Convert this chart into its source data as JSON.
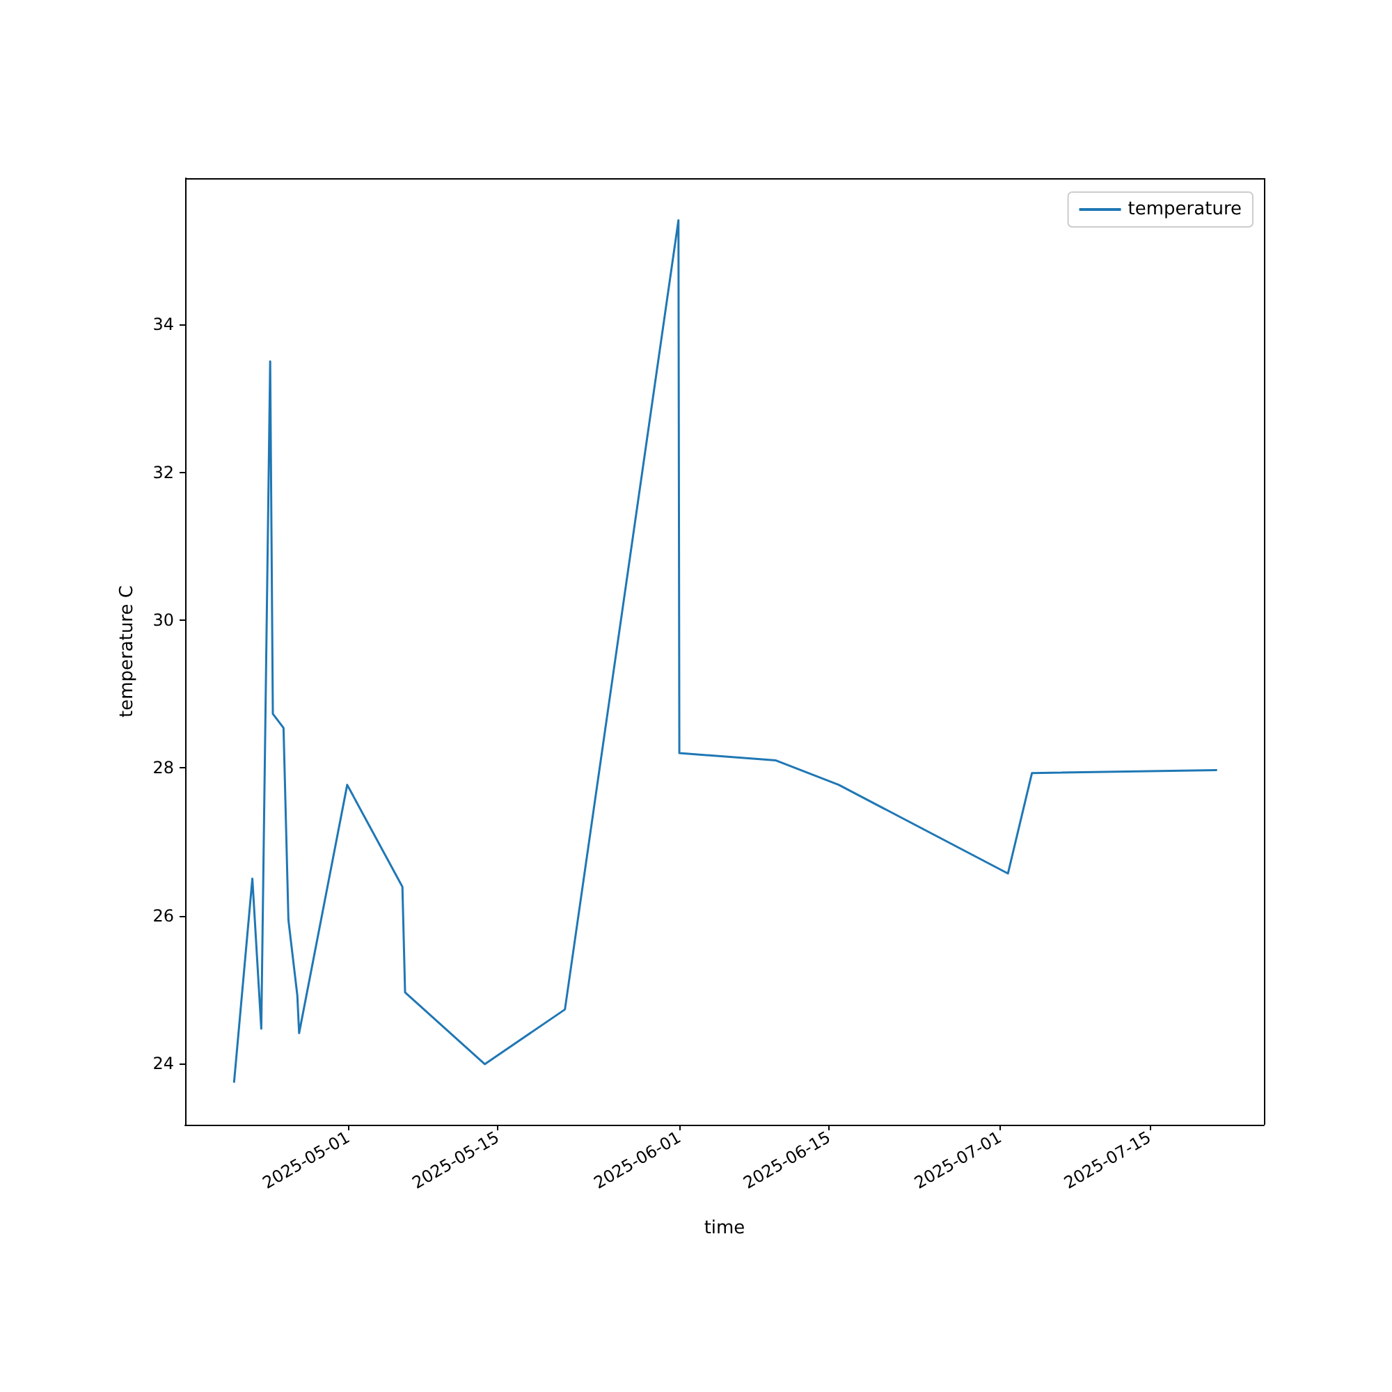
{
  "chart_data": {
    "type": "line",
    "xlabel": "time",
    "ylabel": "temperature C",
    "x": [
      "2025-04-20T08:00",
      "2025-04-22T01:00",
      "2025-04-22T21:00",
      "2025-04-23T17:00",
      "2025-04-23T23:00",
      "2025-04-24T23:00",
      "2025-04-25T10:00",
      "2025-04-26T06:00",
      "2025-04-26T10:00",
      "2025-04-30T22:00",
      "2025-05-06T02:00",
      "2025-05-06T08:00",
      "2025-05-13T19:00",
      "2025-05-21T07:00",
      "2025-05-31T22:00",
      "2025-06-01T00:00",
      "2025-06-10T01:00",
      "2025-06-15T22:00",
      "2025-07-01T18:00",
      "2025-07-04T00:00",
      "2025-07-21T06:00"
    ],
    "series": [
      {
        "name": "temperature",
        "color": "#1f77b4",
        "values": [
          23.75,
          26.5,
          24.47,
          33.5,
          28.73,
          28.54,
          25.94,
          24.92,
          24.41,
          27.77,
          26.39,
          24.96,
          23.99,
          24.73,
          35.41,
          28.2,
          28.1,
          27.77,
          26.57,
          27.93,
          27.97
        ]
      }
    ],
    "xlim": [
      "2025-04-15T18:00",
      "2025-07-25T17:00"
    ],
    "xticks": [
      "2025-05-01",
      "2025-05-15",
      "2025-06-01",
      "2025-06-15",
      "2025-07-01",
      "2025-07-15"
    ],
    "ylim": [
      23.17,
      35.98
    ],
    "yticks": [
      24,
      26,
      28,
      30,
      32,
      34
    ],
    "grid": false,
    "legend": "top right",
    "marker": "none",
    "line_style": "solid"
  }
}
